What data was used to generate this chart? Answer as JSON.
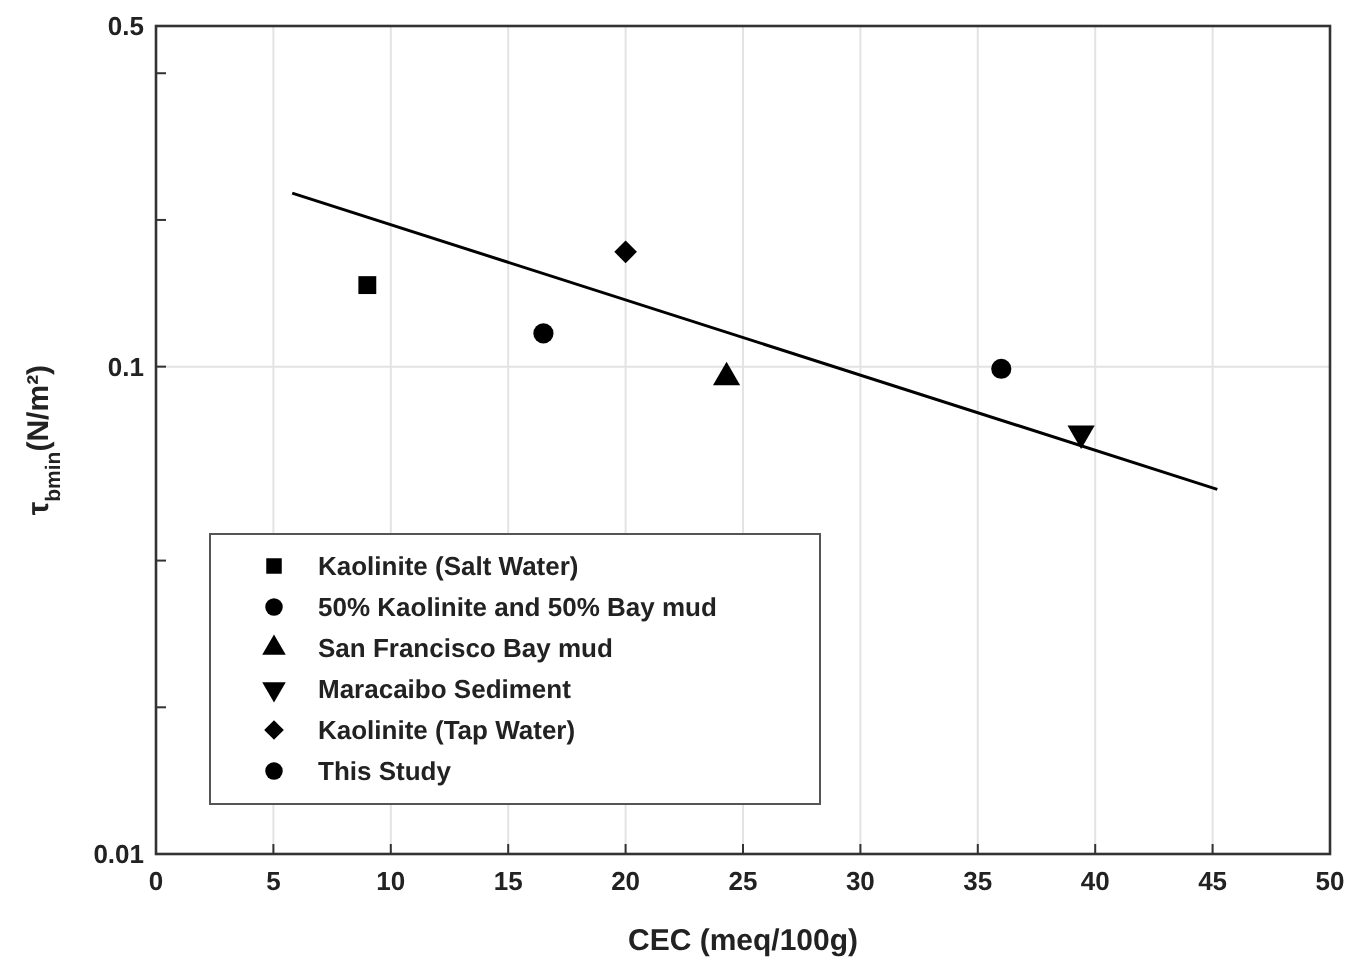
{
  "chart_data": {
    "type": "scatter",
    "xlabel": "CEC (meq/100g)",
    "ylabel": "τ$_{bmin}$(N/m²)",
    "log": "y",
    "xlim": [
      0,
      50
    ],
    "xticks": [
      0,
      5,
      10,
      15,
      20,
      25,
      30,
      35,
      40,
      45,
      50
    ],
    "ylim": [
      0.01,
      0.5
    ],
    "yticks": [
      0.01,
      {
        "value": 0.02,
        "label": null
      },
      {
        "value": 0.04,
        "label": null
      },
      0.1,
      {
        "value": 0.2,
        "label": null
      },
      {
        "value": 0.4,
        "label": null
      },
      0.5
    ],
    "grid": true,
    "legend": "bottom left",
    "series": [
      {
        "name": "Kaolinite (Salt Water)",
        "color": "#000000",
        "marker": "square",
        "x": [
          9
        ],
        "values": [
          0.147
        ]
      },
      {
        "name": "50% Kaolinite and 50% Bay mud",
        "color": "#000000",
        "marker": "circle",
        "x": [
          16.5
        ],
        "values": [
          0.117
        ]
      },
      {
        "name": "San Francisco Bay mud",
        "color": "#000000",
        "marker": "triangle",
        "x": [
          24.3
        ],
        "values": [
          0.095
        ]
      },
      {
        "name": "Maracaibo Sediment",
        "color": "#000000",
        "marker": "triangle-down",
        "x": [
          39.4
        ],
        "values": [
          0.073
        ]
      },
      {
        "name": "Kaolinite (Tap Water)",
        "color": "#000000",
        "marker": "diamond",
        "x": [
          20
        ],
        "values": [
          0.172
        ]
      },
      {
        "name": "This Study",
        "color": "#000000",
        "marker": "circle",
        "x": [
          36
        ],
        "values": [
          0.099
        ]
      },
      {
        "type": "line",
        "color": "#000000",
        "line_style": "solid",
        "x": [
          5.8,
          45.2
        ],
        "values": [
          0.227,
          0.056
        ]
      }
    ]
  }
}
